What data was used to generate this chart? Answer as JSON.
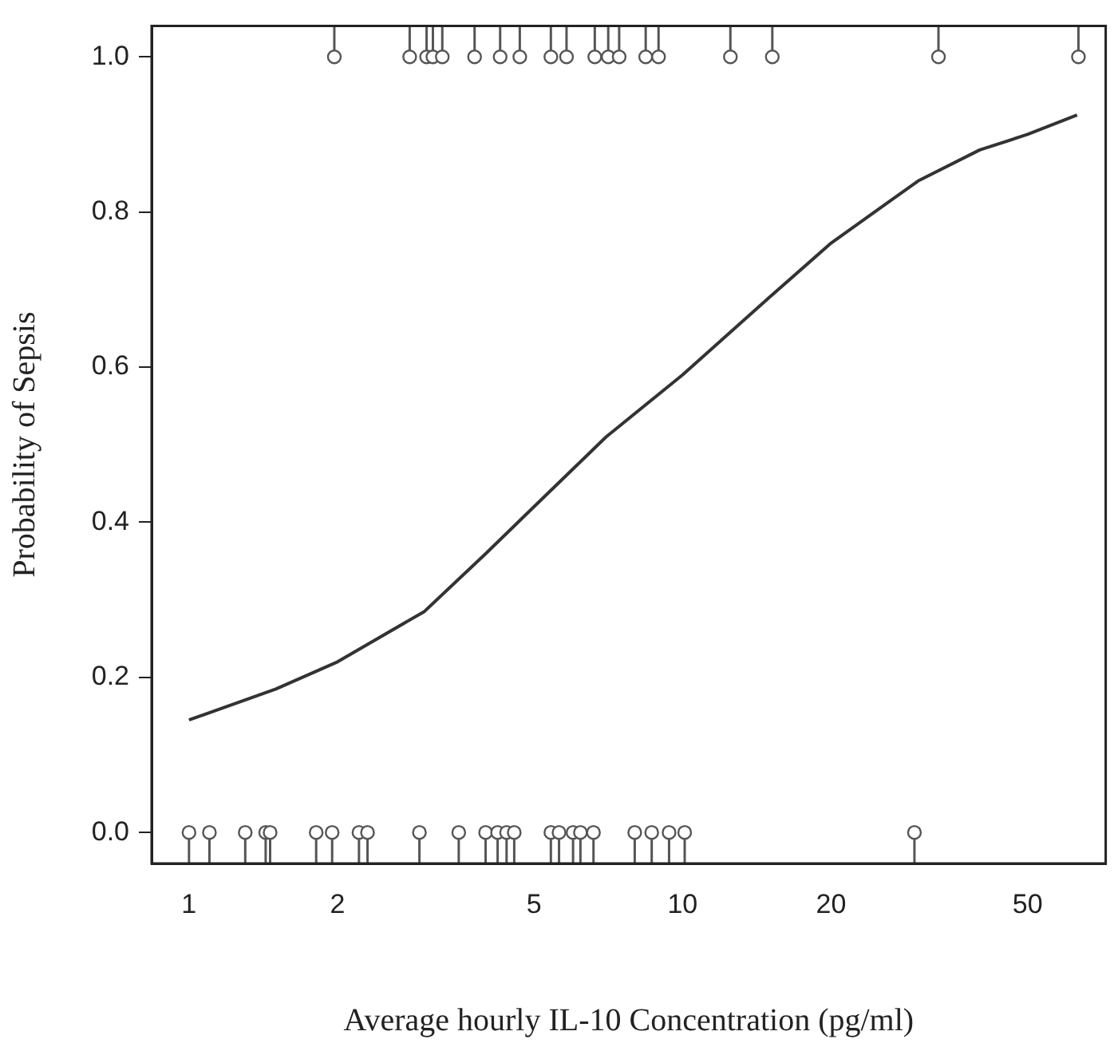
{
  "chart_data": {
    "type": "scatter",
    "xlabel": "Average hourly IL-10 Concentration (pg/ml)",
    "ylabel": "Probability of Sepsis",
    "log": "x",
    "grid": false,
    "xlim": [
      0.84,
      72
    ],
    "ylim": [
      -0.04,
      1.04
    ],
    "xticks": [
      1,
      2,
      5,
      10,
      20,
      50
    ],
    "yticks": [
      {
        "value": 0,
        "label": "0.0"
      },
      {
        "value": 0.2,
        "label": "0.2"
      },
      {
        "value": 0.4,
        "label": "0.4"
      },
      {
        "value": 0.6,
        "label": "0.6"
      },
      {
        "value": 0.8,
        "label": "0.8"
      },
      {
        "value": 1,
        "label": "1.0"
      }
    ],
    "series": [
      {
        "type": "line",
        "color": "#333333",
        "marker": "none",
        "x": [
          1,
          1.5,
          2,
          3,
          4,
          5,
          7,
          10,
          15,
          20,
          30,
          40,
          50,
          63
        ],
        "values": [
          0.145,
          0.185,
          0.22,
          0.285,
          0.36,
          0.42,
          0.51,
          0.59,
          0.69,
          0.76,
          0.84,
          0.88,
          0.9,
          0.925
        ]
      },
      {
        "color": "#555555",
        "marker": "circle",
        "x": [
          1.97,
          2.8,
          3.03,
          3.12,
          3.26,
          3.79,
          4.27,
          4.68,
          5.41,
          5.82,
          6.64,
          7.07,
          7.44,
          8.42,
          8.94,
          12.5,
          15.2,
          33,
          63.4
        ],
        "values": [
          1,
          1,
          1,
          1,
          1,
          1,
          1,
          1,
          1,
          1,
          1,
          1,
          1,
          1,
          1,
          1,
          1,
          1,
          1
        ]
      },
      {
        "color": "#555555",
        "marker": "circle",
        "x": [
          1,
          1.1,
          1.3,
          1.43,
          1.46,
          1.81,
          1.95,
          2.21,
          2.3,
          2.93,
          3.52,
          3.99,
          4.22,
          4.4,
          4.56,
          5.41,
          5.62,
          6,
          6.21,
          6.6,
          8,
          8.66,
          9.39,
          10.1,
          29.5
        ],
        "values": [
          0,
          0,
          0,
          0,
          0,
          0,
          0,
          0,
          0,
          0,
          0,
          0,
          0,
          0,
          0,
          0,
          0,
          0,
          0,
          0,
          0,
          0,
          0,
          0,
          0
        ]
      }
    ]
  }
}
